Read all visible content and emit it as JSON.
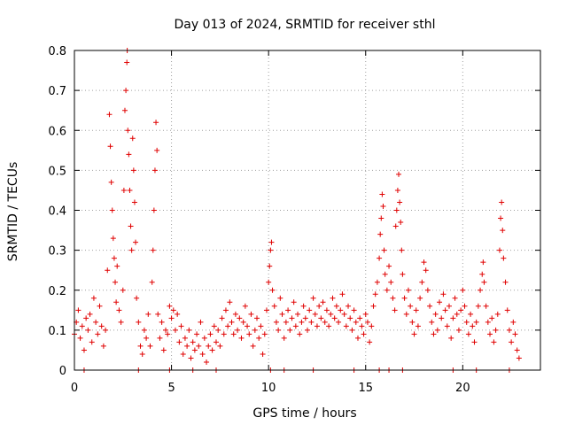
{
  "chart_data": {
    "type": "scatter",
    "title": "Day 013 of 2024, SRMTID for receiver sthl",
    "xlabel": "GPS time / hours",
    "ylabel": "SRMTID / TECUs",
    "xlim": [
      0,
      24
    ],
    "ylim": [
      0,
      0.8
    ],
    "xticks": [
      0,
      5,
      10,
      15,
      20
    ],
    "yticks": [
      0,
      0.1,
      0.2,
      0.3,
      0.4,
      0.5,
      0.6,
      0.7,
      0.8
    ],
    "xtick_labels": [
      "0",
      "5",
      "10",
      "15",
      "20"
    ],
    "ytick_labels": [
      "0",
      "0.1",
      "0.2",
      "0.3",
      "0.4",
      "0.5",
      "0.6",
      "0.7",
      "0.8"
    ],
    "grid": true,
    "marker": "plus",
    "color": "#e00000",
    "series": [
      {
        "name": "SRMTID",
        "points": [
          [
            0.0,
            0.09
          ],
          [
            0.1,
            0.12
          ],
          [
            0.2,
            0.15
          ],
          [
            0.3,
            0.08
          ],
          [
            0.4,
            0.11
          ],
          [
            0.5,
            0.05
          ],
          [
            0.6,
            0.13
          ],
          [
            0.7,
            0.1
          ],
          [
            0.8,
            0.14
          ],
          [
            0.9,
            0.07
          ],
          [
            1.0,
            0.18
          ],
          [
            1.1,
            0.12
          ],
          [
            1.2,
            0.09
          ],
          [
            1.3,
            0.16
          ],
          [
            1.4,
            0.11
          ],
          [
            1.5,
            0.06
          ],
          [
            1.6,
            0.1
          ],
          [
            1.7,
            0.25
          ],
          [
            1.8,
            0.64
          ],
          [
            1.85,
            0.56
          ],
          [
            1.9,
            0.47
          ],
          [
            1.95,
            0.4
          ],
          [
            2.0,
            0.33
          ],
          [
            2.05,
            0.28
          ],
          [
            2.1,
            0.22
          ],
          [
            2.15,
            0.17
          ],
          [
            2.2,
            0.26
          ],
          [
            2.3,
            0.15
          ],
          [
            2.4,
            0.12
          ],
          [
            2.5,
            0.2
          ],
          [
            2.55,
            0.45
          ],
          [
            2.6,
            0.65
          ],
          [
            2.65,
            0.7
          ],
          [
            2.7,
            0.77
          ],
          [
            2.72,
            0.8
          ],
          [
            2.75,
            0.6
          ],
          [
            2.8,
            0.54
          ],
          [
            2.85,
            0.45
          ],
          [
            2.9,
            0.36
          ],
          [
            2.95,
            0.3
          ],
          [
            3.0,
            0.58
          ],
          [
            3.05,
            0.5
          ],
          [
            3.1,
            0.42
          ],
          [
            3.15,
            0.32
          ],
          [
            3.2,
            0.18
          ],
          [
            3.3,
            0.12
          ],
          [
            3.4,
            0.06
          ],
          [
            3.5,
            0.04
          ],
          [
            3.6,
            0.1
          ],
          [
            3.7,
            0.08
          ],
          [
            3.8,
            0.14
          ],
          [
            3.9,
            0.06
          ],
          [
            4.0,
            0.22
          ],
          [
            4.05,
            0.3
          ],
          [
            4.1,
            0.4
          ],
          [
            4.15,
            0.5
          ],
          [
            4.2,
            0.62
          ],
          [
            4.25,
            0.55
          ],
          [
            4.3,
            0.14
          ],
          [
            4.4,
            0.08
          ],
          [
            4.5,
            0.12
          ],
          [
            4.6,
            0.05
          ],
          [
            4.7,
            0.1
          ],
          [
            4.8,
            0.09
          ],
          [
            4.9,
            0.16
          ],
          [
            5.0,
            0.13
          ],
          [
            5.1,
            0.15
          ],
          [
            5.2,
            0.1
          ],
          [
            5.3,
            0.14
          ],
          [
            5.4,
            0.07
          ],
          [
            5.5,
            0.11
          ],
          [
            5.6,
            0.04
          ],
          [
            5.7,
            0.08
          ],
          [
            5.8,
            0.06
          ],
          [
            5.9,
            0.1
          ],
          [
            6.0,
            0.03
          ],
          [
            6.1,
            0.07
          ],
          [
            6.2,
            0.05
          ],
          [
            6.3,
            0.09
          ],
          [
            6.4,
            0.06
          ],
          [
            6.5,
            0.12
          ],
          [
            6.6,
            0.04
          ],
          [
            6.7,
            0.08
          ],
          [
            6.8,
            0.02
          ],
          [
            6.9,
            0.06
          ],
          [
            7.0,
            0.09
          ],
          [
            7.1,
            0.05
          ],
          [
            7.2,
            0.11
          ],
          [
            7.3,
            0.07
          ],
          [
            7.4,
            0.1
          ],
          [
            7.5,
            0.06
          ],
          [
            7.6,
            0.13
          ],
          [
            7.7,
            0.09
          ],
          [
            7.8,
            0.15
          ],
          [
            7.9,
            0.11
          ],
          [
            8.0,
            0.17
          ],
          [
            8.1,
            0.12
          ],
          [
            8.2,
            0.09
          ],
          [
            8.3,
            0.14
          ],
          [
            8.4,
            0.1
          ],
          [
            8.5,
            0.13
          ],
          [
            8.6,
            0.08
          ],
          [
            8.7,
            0.12
          ],
          [
            8.8,
            0.16
          ],
          [
            8.9,
            0.11
          ],
          [
            9.0,
            0.09
          ],
          [
            9.1,
            0.14
          ],
          [
            9.2,
            0.06
          ],
          [
            9.3,
            0.1
          ],
          [
            9.4,
            0.13
          ],
          [
            9.5,
            0.08
          ],
          [
            9.6,
            0.11
          ],
          [
            9.7,
            0.04
          ],
          [
            9.8,
            0.09
          ],
          [
            9.9,
            0.15
          ],
          [
            10.0,
            0.22
          ],
          [
            10.05,
            0.26
          ],
          [
            10.1,
            0.3
          ],
          [
            10.15,
            0.32
          ],
          [
            10.2,
            0.2
          ],
          [
            10.3,
            0.16
          ],
          [
            10.4,
            0.12
          ],
          [
            10.5,
            0.1
          ],
          [
            10.6,
            0.18
          ],
          [
            10.7,
            0.14
          ],
          [
            10.8,
            0.08
          ],
          [
            10.9,
            0.12
          ],
          [
            11.0,
            0.15
          ],
          [
            11.1,
            0.1
          ],
          [
            11.2,
            0.13
          ],
          [
            11.3,
            0.17
          ],
          [
            11.4,
            0.11
          ],
          [
            11.5,
            0.14
          ],
          [
            11.6,
            0.09
          ],
          [
            11.7,
            0.12
          ],
          [
            11.8,
            0.16
          ],
          [
            11.9,
            0.13
          ],
          [
            12.0,
            0.1
          ],
          [
            12.1,
            0.15
          ],
          [
            12.2,
            0.12
          ],
          [
            12.3,
            0.18
          ],
          [
            12.4,
            0.14
          ],
          [
            12.5,
            0.11
          ],
          [
            12.6,
            0.16
          ],
          [
            12.7,
            0.13
          ],
          [
            12.8,
            0.17
          ],
          [
            12.9,
            0.12
          ],
          [
            13.0,
            0.15
          ],
          [
            13.1,
            0.11
          ],
          [
            13.2,
            0.14
          ],
          [
            13.3,
            0.18
          ],
          [
            13.4,
            0.13
          ],
          [
            13.5,
            0.16
          ],
          [
            13.6,
            0.12
          ],
          [
            13.7,
            0.15
          ],
          [
            13.8,
            0.19
          ],
          [
            13.9,
            0.14
          ],
          [
            14.0,
            0.11
          ],
          [
            14.1,
            0.16
          ],
          [
            14.2,
            0.13
          ],
          [
            14.3,
            0.1
          ],
          [
            14.4,
            0.15
          ],
          [
            14.5,
            0.12
          ],
          [
            14.6,
            0.08
          ],
          [
            14.7,
            0.13
          ],
          [
            14.8,
            0.11
          ],
          [
            14.9,
            0.09
          ],
          [
            15.0,
            0.14
          ],
          [
            15.1,
            0.12
          ],
          [
            15.2,
            0.07
          ],
          [
            15.3,
            0.11
          ],
          [
            15.4,
            0.16
          ],
          [
            15.5,
            0.19
          ],
          [
            15.6,
            0.22
          ],
          [
            15.7,
            0.28
          ],
          [
            15.75,
            0.34
          ],
          [
            15.8,
            0.38
          ],
          [
            15.85,
            0.44
          ],
          [
            15.9,
            0.41
          ],
          [
            15.95,
            0.3
          ],
          [
            16.0,
            0.24
          ],
          [
            16.1,
            0.2
          ],
          [
            16.2,
            0.26
          ],
          [
            16.3,
            0.22
          ],
          [
            16.4,
            0.18
          ],
          [
            16.5,
            0.15
          ],
          [
            16.55,
            0.36
          ],
          [
            16.6,
            0.4
          ],
          [
            16.65,
            0.45
          ],
          [
            16.7,
            0.49
          ],
          [
            16.75,
            0.42
          ],
          [
            16.8,
            0.37
          ],
          [
            16.85,
            0.3
          ],
          [
            16.9,
            0.24
          ],
          [
            17.0,
            0.18
          ],
          [
            17.1,
            0.14
          ],
          [
            17.2,
            0.2
          ],
          [
            17.3,
            0.16
          ],
          [
            17.4,
            0.12
          ],
          [
            17.5,
            0.09
          ],
          [
            17.6,
            0.15
          ],
          [
            17.7,
            0.11
          ],
          [
            17.8,
            0.18
          ],
          [
            17.9,
            0.22
          ],
          [
            18.0,
            0.27
          ],
          [
            18.1,
            0.25
          ],
          [
            18.2,
            0.2
          ],
          [
            18.3,
            0.16
          ],
          [
            18.4,
            0.12
          ],
          [
            18.5,
            0.09
          ],
          [
            18.6,
            0.14
          ],
          [
            18.7,
            0.1
          ],
          [
            18.8,
            0.17
          ],
          [
            18.9,
            0.13
          ],
          [
            19.0,
            0.19
          ],
          [
            19.1,
            0.15
          ],
          [
            19.2,
            0.11
          ],
          [
            19.3,
            0.16
          ],
          [
            19.4,
            0.08
          ],
          [
            19.5,
            0.13
          ],
          [
            19.6,
            0.18
          ],
          [
            19.7,
            0.14
          ],
          [
            19.8,
            0.1
          ],
          [
            19.9,
            0.15
          ],
          [
            20.0,
            0.2
          ],
          [
            20.1,
            0.16
          ],
          [
            20.2,
            0.12
          ],
          [
            20.3,
            0.09
          ],
          [
            20.4,
            0.14
          ],
          [
            20.5,
            0.11
          ],
          [
            20.6,
            0.07
          ],
          [
            20.7,
            0.12
          ],
          [
            20.8,
            0.16
          ],
          [
            20.9,
            0.2
          ],
          [
            21.0,
            0.24
          ],
          [
            21.05,
            0.27
          ],
          [
            21.1,
            0.22
          ],
          [
            21.2,
            0.16
          ],
          [
            21.3,
            0.12
          ],
          [
            21.4,
            0.09
          ],
          [
            21.5,
            0.13
          ],
          [
            21.6,
            0.07
          ],
          [
            21.7,
            0.1
          ],
          [
            21.8,
            0.14
          ],
          [
            21.9,
            0.3
          ],
          [
            21.95,
            0.38
          ],
          [
            22.0,
            0.42
          ],
          [
            22.05,
            0.35
          ],
          [
            22.1,
            0.28
          ],
          [
            22.2,
            0.22
          ],
          [
            22.3,
            0.15
          ],
          [
            22.4,
            0.1
          ],
          [
            22.5,
            0.07
          ],
          [
            22.6,
            0.12
          ],
          [
            22.7,
            0.09
          ],
          [
            22.8,
            0.05
          ],
          [
            22.9,
            0.03
          ],
          [
            0.5,
            0.0
          ],
          [
            3.3,
            0.0
          ],
          [
            4.9,
            0.0
          ],
          [
            6.1,
            0.0
          ],
          [
            7.3,
            0.0
          ],
          [
            10.1,
            0.0
          ],
          [
            10.8,
            0.0
          ],
          [
            12.3,
            0.0
          ],
          [
            14.4,
            0.0
          ],
          [
            15.7,
            0.0
          ],
          [
            16.2,
            0.0
          ],
          [
            16.9,
            0.0
          ],
          [
            19.5,
            0.0
          ],
          [
            20.7,
            0.0
          ],
          [
            22.4,
            0.0
          ]
        ]
      }
    ]
  }
}
